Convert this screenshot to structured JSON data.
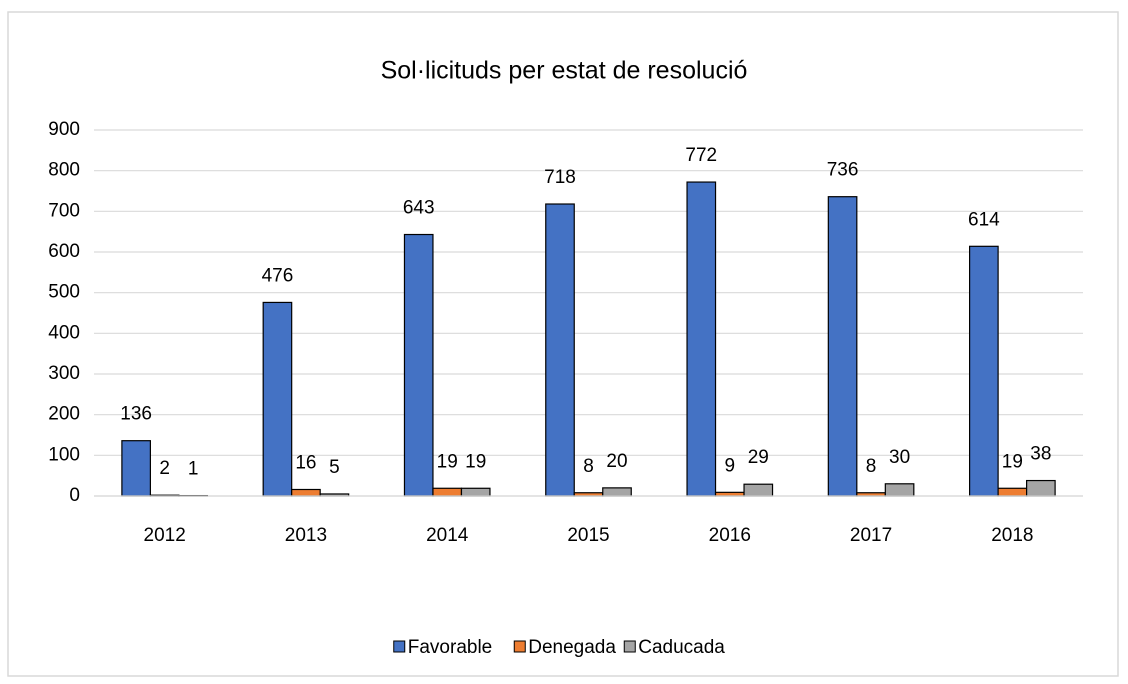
{
  "chart_data": {
    "type": "bar",
    "title": "Sol·licituds per estat de resolució",
    "categories": [
      "2012",
      "2013",
      "2014",
      "2015",
      "2016",
      "2017",
      "2018"
    ],
    "series": [
      {
        "name": "Favorable",
        "color": "#4472c4",
        "values": [
          136,
          476,
          643,
          718,
          772,
          736,
          614
        ]
      },
      {
        "name": "Denegada",
        "color": "#ed7d31",
        "values": [
          2,
          16,
          19,
          8,
          9,
          8,
          19
        ]
      },
      {
        "name": "Caducada",
        "color": "#a5a5a5",
        "values": [
          1,
          5,
          19,
          20,
          29,
          30,
          38
        ]
      }
    ],
    "ylim": [
      0,
      900
    ],
    "yticks": [
      0,
      100,
      200,
      300,
      400,
      500,
      600,
      700,
      800,
      900
    ],
    "grid": true,
    "legend": "bottom"
  }
}
